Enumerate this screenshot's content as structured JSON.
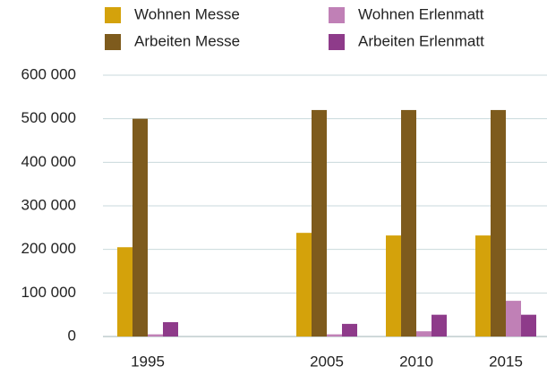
{
  "chart_data": {
    "type": "bar",
    "categories": [
      "1995",
      null,
      "2005",
      "2010",
      "2015"
    ],
    "series": [
      {
        "name": "Wohnen Messe",
        "color": "#d4a20b",
        "values": [
          205000,
          null,
          238000,
          232000,
          232000
        ]
      },
      {
        "name": "Arbeiten Messe",
        "color": "#7e5b1d",
        "values": [
          500000,
          null,
          520000,
          520000,
          520000
        ]
      },
      {
        "name": "Wohnen Erlenmatt",
        "color": "#c080b6",
        "values": [
          5000,
          null,
          5000,
          12000,
          82000
        ]
      },
      {
        "name": "Arbeiten Erlenmatt",
        "color": "#8e3b8a",
        "values": [
          33000,
          null,
          29000,
          50000,
          50000
        ]
      }
    ],
    "ylim": [
      0,
      600000
    ],
    "yticks": [
      0,
      {
        "value": 100000,
        "label": "100 000"
      },
      {
        "value": 200000,
        "label": "200 000"
      },
      {
        "value": 300000,
        "label": "300 000"
      },
      {
        "value": 400000,
        "label": "400 000"
      },
      {
        "value": 500000,
        "label": "500 000"
      },
      {
        "value": 600000,
        "label": "600 000"
      }
    ],
    "grid": true
  }
}
